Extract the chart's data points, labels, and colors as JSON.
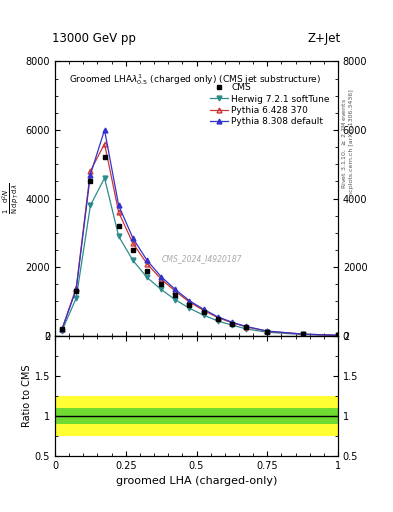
{
  "title_top": "13000 GeV pp",
  "title_right": "Z+Jet",
  "plot_title": "Groomed LHA$\\lambda^{1}_{0.5}$ (charged only) (CMS jet substructure)",
  "xlabel": "groomed LHA (charged-only)",
  "ylabel_ratio": "Ratio to CMS",
  "right_label_top": "Rivet 3.1.10, $\\geq$ 2.7M events",
  "right_label_bot": "mcplots.cern.ch [arXiv:1306.3436]",
  "watermark": "CMS_2024_I4920187",
  "xlim": [
    0,
    1
  ],
  "ylim_main": [
    0,
    8000
  ],
  "ylim_ratio": [
    0.5,
    2.0
  ],
  "x_data": [
    0.025,
    0.075,
    0.125,
    0.175,
    0.225,
    0.275,
    0.325,
    0.375,
    0.425,
    0.475,
    0.525,
    0.575,
    0.625,
    0.675,
    0.75,
    0.875,
    1.0
  ],
  "cms_y": [
    200,
    1300,
    4500,
    5200,
    3200,
    2500,
    1900,
    1500,
    1200,
    900,
    680,
    490,
    350,
    240,
    120,
    40,
    10
  ],
  "herwig_y": [
    150,
    1100,
    3800,
    4600,
    2900,
    2200,
    1700,
    1350,
    1050,
    800,
    600,
    430,
    310,
    200,
    100,
    35,
    8
  ],
  "pythia6_y": [
    200,
    1400,
    4800,
    5600,
    3600,
    2700,
    2100,
    1650,
    1300,
    980,
    740,
    530,
    380,
    260,
    130,
    45,
    11
  ],
  "pythia8_y": [
    200,
    1350,
    4700,
    6000,
    3800,
    2850,
    2200,
    1720,
    1350,
    1020,
    770,
    550,
    395,
    270,
    135,
    48,
    12
  ],
  "cms_color": "#000000",
  "herwig_color": "#2e8b8b",
  "pythia6_color": "#cc3333",
  "pythia8_color": "#3333cc",
  "yticks_main": [
    0,
    2000,
    4000,
    6000,
    8000
  ],
  "ytick_labels_main": [
    "0",
    "2000",
    "4000",
    "6000",
    "8000"
  ],
  "xticks_main": [
    0,
    0.25,
    0.5,
    0.75,
    1.0
  ],
  "xtick_labels_main": [
    "0",
    "0.25",
    "0.5",
    "0.75",
    "1"
  ],
  "yticks_ratio": [
    0.5,
    1.0,
    1.5,
    2.0
  ],
  "ytick_labels_ratio": [
    "0.5",
    "1",
    "1.5",
    "2"
  ],
  "green_band_inner": [
    0.9,
    1.1
  ],
  "yellow_band_outer": [
    0.75,
    1.25
  ],
  "fig_width": 3.93,
  "fig_height": 5.12,
  "dpi": 100
}
